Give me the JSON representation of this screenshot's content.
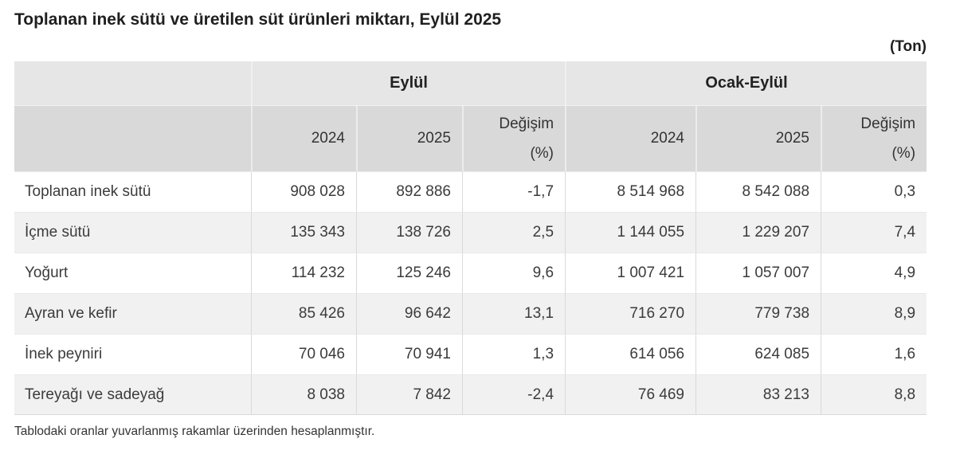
{
  "page": {
    "title": "Toplanan inek sütü ve üretilen süt ürünleri miktarı, Eylül 2025",
    "unit_label": "(Ton)",
    "footnote": "Tablodaki oranlar yuvarlanmış rakamlar üzerinden hesaplanmıştır."
  },
  "table": {
    "groups": [
      {
        "label": "Eylül"
      },
      {
        "label": "Ocak-Eylül"
      }
    ],
    "sub_headers": {
      "year1": "2024",
      "year2": "2025",
      "change_line1": "Değişim",
      "change_line2": "(%)"
    },
    "rows": [
      {
        "label": "Toplanan inek sütü",
        "values": [
          "908 028",
          "892 886",
          "-1,7",
          "8 514 968",
          "8 542 088",
          "0,3"
        ]
      },
      {
        "label": "İçme sütü",
        "values": [
          "135 343",
          "138 726",
          "2,5",
          "1 144 055",
          "1 229 207",
          "7,4"
        ]
      },
      {
        "label": "Yoğurt",
        "values": [
          "114 232",
          "125 246",
          "9,6",
          "1 007 421",
          "1 057 007",
          "4,9"
        ]
      },
      {
        "label": "Ayran ve kefir",
        "values": [
          "85 426",
          "96 642",
          "13,1",
          "716 270",
          "779 738",
          "8,9"
        ]
      },
      {
        "label": "İnek peyniri",
        "values": [
          "70 046",
          "70 941",
          "1,3",
          "614 056",
          "624 085",
          "1,6"
        ]
      },
      {
        "label": "Tereyağı ve sadeyağ",
        "values": [
          "8 038",
          "7 842",
          "-2,4",
          "76 469",
          "83 213",
          "8,8"
        ]
      }
    ]
  },
  "chart_data": {
    "type": "table",
    "title": "Toplanan inek sütü ve üretilen süt ürünleri miktarı, Eylül 2025",
    "unit": "Ton",
    "column_groups": [
      "Eylül",
      "Ocak-Eylül"
    ],
    "columns": [
      "Eylül 2024",
      "Eylül 2025",
      "Eylül Değişim (%)",
      "Ocak-Eylül 2024",
      "Ocak-Eylül 2025",
      "Ocak-Eylül Değişim (%)"
    ],
    "rows": [
      {
        "label": "Toplanan inek sütü",
        "eylul_2024": 908028,
        "eylul_2025": 892886,
        "eylul_degisim_pct": -1.7,
        "ocak_eylul_2024": 8514968,
        "ocak_eylul_2025": 8542088,
        "ocak_eylul_degisim_pct": 0.3
      },
      {
        "label": "İçme sütü",
        "eylul_2024": 135343,
        "eylul_2025": 138726,
        "eylul_degisim_pct": 2.5,
        "ocak_eylul_2024": 1144055,
        "ocak_eylul_2025": 1229207,
        "ocak_eylul_degisim_pct": 7.4
      },
      {
        "label": "Yoğurt",
        "eylul_2024": 114232,
        "eylul_2025": 125246,
        "eylul_degisim_pct": 9.6,
        "ocak_eylul_2024": 1007421,
        "ocak_eylul_2025": 1057007,
        "ocak_eylul_degisim_pct": 4.9
      },
      {
        "label": "Ayran ve kefir",
        "eylul_2024": 85426,
        "eylul_2025": 96642,
        "eylul_degisim_pct": 13.1,
        "ocak_eylul_2024": 716270,
        "ocak_eylul_2025": 779738,
        "ocak_eylul_degisim_pct": 8.9
      },
      {
        "label": "İnek peyniri",
        "eylul_2024": 70046,
        "eylul_2025": 70941,
        "eylul_degisim_pct": 1.3,
        "ocak_eylul_2024": 614056,
        "ocak_eylul_2025": 624085,
        "ocak_eylul_degisim_pct": 1.6
      },
      {
        "label": "Tereyağı ve sadeyağ",
        "eylul_2024": 8038,
        "eylul_2025": 7842,
        "eylul_degisim_pct": -2.4,
        "ocak_eylul_2024": 76469,
        "ocak_eylul_2025": 83213,
        "ocak_eylul_degisim_pct": 8.8
      }
    ]
  },
  "colors": {
    "group_header_bg": "#e6e6e6",
    "sub_header_bg": "#d9d9d9",
    "alt_row_bg": "#f1f1f1",
    "text": "#333333",
    "title_text": "#1f1f1f"
  }
}
